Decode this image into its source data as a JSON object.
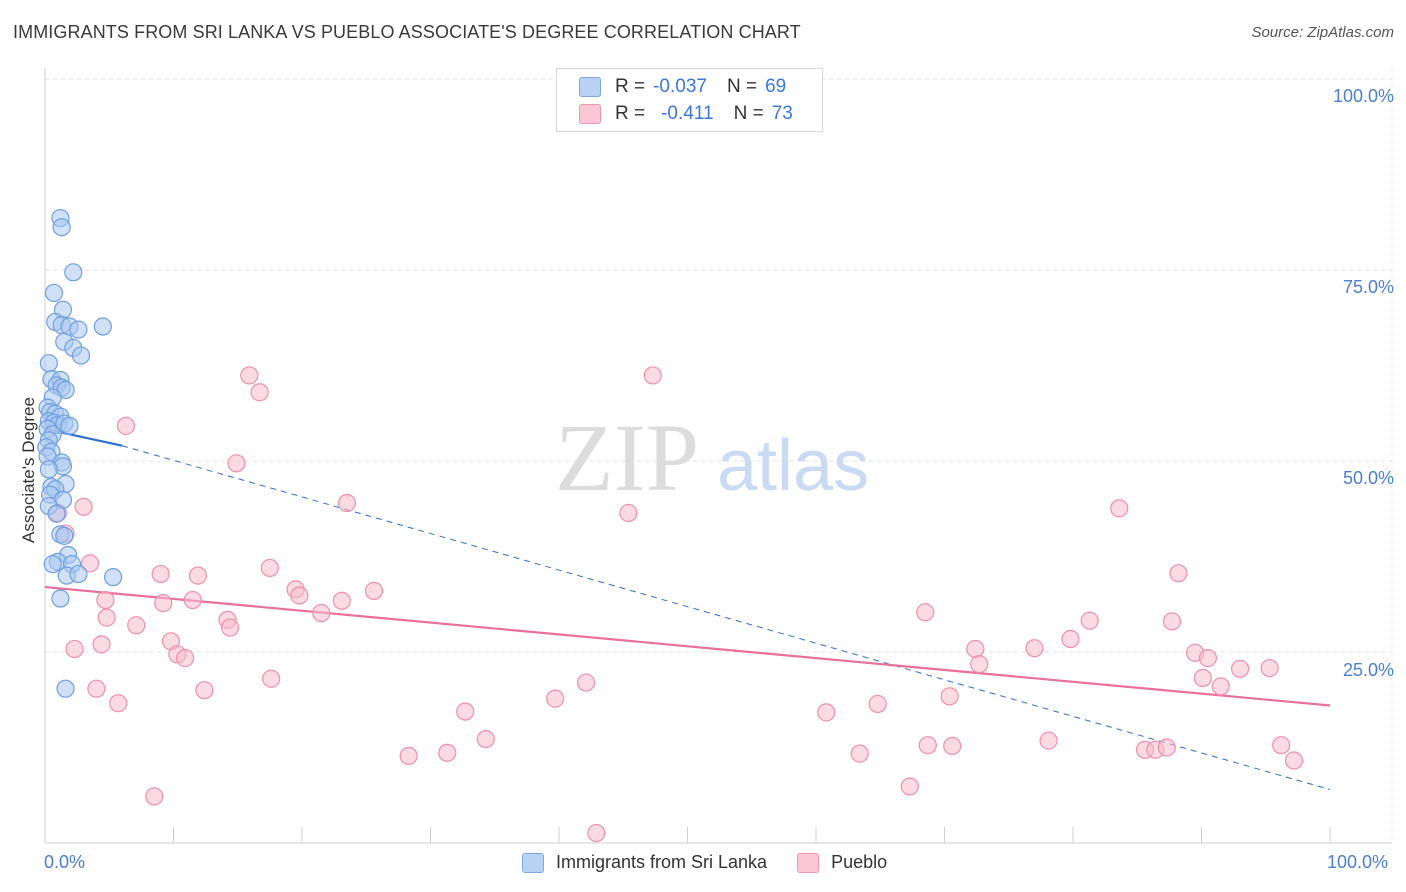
{
  "title": "IMMIGRANTS FROM SRI LANKA VS PUEBLO ASSOCIATE'S DEGREE CORRELATION CHART",
  "source": "Source: ZipAtlas.com",
  "watermark": {
    "zip": "ZIP",
    "atlas": "atlas"
  },
  "colors": {
    "blue_fill": "#a9c8f0",
    "blue_stroke": "#6f9fe0",
    "blue_line": "#2f6fd0",
    "pink_fill": "#f7bccd",
    "pink_stroke": "#ee8fae",
    "pink_line": "#e8709a",
    "axis_text": "#4a7fd0"
  },
  "legend": {
    "rows": [
      {
        "r_label": "R =",
        "r_value": "-0.037",
        "n_label": "N =",
        "n_value": "69"
      },
      {
        "r_label": "R =",
        "r_value": "-0.411",
        "n_label": "N =",
        "n_value": "73"
      }
    ]
  },
  "bottom_legend": [
    "Immigrants from Sri Lanka",
    "Pueblo"
  ],
  "chart_data": {
    "type": "scatter",
    "title": "IMMIGRANTS FROM SRI LANKA VS PUEBLO ASSOCIATE'S DEGREE CORRELATION CHART",
    "xlabel": "",
    "ylabel": "Associate's Degree",
    "xlim": [
      0,
      100
    ],
    "ylim": [
      0,
      100
    ],
    "x_tick_labels": [
      "0.0%",
      "100.0%"
    ],
    "y_tick_labels": [
      "100.0%",
      "75.0%",
      "50.0%",
      "25.0%"
    ],
    "y_ticks": [
      100,
      75,
      50,
      25
    ],
    "grid": true,
    "series": [
      {
        "name": "Immigrants from Sri Lanka",
        "r": -0.037,
        "n": 69,
        "trend_solid": {
          "x": [
            0,
            6
          ],
          "y": [
            54.2,
            52.0
          ]
        },
        "trend_dashed": {
          "x": [
            6,
            100
          ],
          "y": [
            52.0,
            7.0
          ]
        },
        "points": [
          [
            1.2,
            81.8
          ],
          [
            1.3,
            80.6
          ],
          [
            2.2,
            74.7
          ],
          [
            0.7,
            72.0
          ],
          [
            1.4,
            69.8
          ],
          [
            0.8,
            68.2
          ],
          [
            1.3,
            67.8
          ],
          [
            1.9,
            67.6
          ],
          [
            2.6,
            67.2
          ],
          [
            4.5,
            67.6
          ],
          [
            1.5,
            65.6
          ],
          [
            2.2,
            64.8
          ],
          [
            2.8,
            63.8
          ],
          [
            0.3,
            62.8
          ],
          [
            0.5,
            60.7
          ],
          [
            1.2,
            60.6
          ],
          [
            0.9,
            59.9
          ],
          [
            1.3,
            59.6
          ],
          [
            1.6,
            59.3
          ],
          [
            0.6,
            58.3
          ],
          [
            0.2,
            57.0
          ],
          [
            0.4,
            56.4
          ],
          [
            0.8,
            56.2
          ],
          [
            1.2,
            55.8
          ],
          [
            0.3,
            55.2
          ],
          [
            0.7,
            55.0
          ],
          [
            1.0,
            54.7
          ],
          [
            1.5,
            54.9
          ],
          [
            1.9,
            54.6
          ],
          [
            0.2,
            54.2
          ],
          [
            0.6,
            53.5
          ],
          [
            0.3,
            52.7
          ],
          [
            0.1,
            51.8
          ],
          [
            0.5,
            51.2
          ],
          [
            0.2,
            50.6
          ],
          [
            1.3,
            49.8
          ],
          [
            1.4,
            49.3
          ],
          [
            0.3,
            48.9
          ],
          [
            1.6,
            47.0
          ],
          [
            0.5,
            46.6
          ],
          [
            0.8,
            46.3
          ],
          [
            0.4,
            45.6
          ],
          [
            1.4,
            44.9
          ],
          [
            0.3,
            44.1
          ],
          [
            0.9,
            43.1
          ],
          [
            1.2,
            40.4
          ],
          [
            1.5,
            40.2
          ],
          [
            1.8,
            37.7
          ],
          [
            1.0,
            36.8
          ],
          [
            0.6,
            36.5
          ],
          [
            2.1,
            36.5
          ],
          [
            1.7,
            35.0
          ],
          [
            2.6,
            35.2
          ],
          [
            5.3,
            34.8
          ],
          [
            1.2,
            32.0
          ],
          [
            1.6,
            20.2
          ]
        ]
      },
      {
        "name": "Pueblo",
        "r": -0.411,
        "n": 73,
        "trend": {
          "x": [
            0,
            100
          ],
          "y": [
            33.5,
            18.0
          ]
        },
        "points": [
          [
            15.9,
            61.2
          ],
          [
            47.3,
            61.2
          ],
          [
            16.7,
            59.0
          ],
          [
            6.3,
            54.6
          ],
          [
            14.9,
            49.7
          ],
          [
            23.5,
            44.5
          ],
          [
            1.0,
            43.2
          ],
          [
            3.0,
            44.0
          ],
          [
            45.4,
            43.2
          ],
          [
            83.6,
            43.8
          ],
          [
            1.6,
            40.5
          ],
          [
            3.5,
            36.6
          ],
          [
            17.5,
            36.0
          ],
          [
            9.0,
            35.2
          ],
          [
            11.9,
            35.0
          ],
          [
            88.2,
            35.3
          ],
          [
            19.5,
            33.2
          ],
          [
            25.6,
            33.0
          ],
          [
            19.8,
            32.4
          ],
          [
            4.7,
            31.8
          ],
          [
            9.2,
            31.4
          ],
          [
            11.5,
            31.8
          ],
          [
            23.1,
            31.7
          ],
          [
            21.5,
            30.1
          ],
          [
            68.5,
            30.2
          ],
          [
            4.8,
            29.5
          ],
          [
            14.2,
            29.2
          ],
          [
            7.1,
            28.5
          ],
          [
            14.4,
            28.2
          ],
          [
            9.8,
            26.4
          ],
          [
            81.3,
            29.1
          ],
          [
            87.7,
            29.0
          ],
          [
            79.8,
            26.7
          ],
          [
            4.4,
            26.0
          ],
          [
            2.3,
            25.4
          ],
          [
            10.3,
            24.7
          ],
          [
            10.9,
            24.2
          ],
          [
            72.4,
            25.4
          ],
          [
            77.0,
            25.5
          ],
          [
            72.7,
            23.4
          ],
          [
            89.5,
            24.9
          ],
          [
            90.5,
            24.2
          ],
          [
            93.0,
            22.8
          ],
          [
            95.3,
            22.9
          ],
          [
            17.6,
            21.5
          ],
          [
            42.1,
            21.0
          ],
          [
            39.7,
            18.9
          ],
          [
            90.1,
            21.6
          ],
          [
            91.5,
            20.5
          ],
          [
            4.0,
            20.2
          ],
          [
            12.4,
            20.0
          ],
          [
            70.4,
            19.2
          ],
          [
            5.7,
            18.3
          ],
          [
            32.7,
            17.2
          ],
          [
            60.8,
            17.1
          ],
          [
            64.8,
            18.2
          ],
          [
            34.3,
            13.6
          ],
          [
            68.7,
            12.8
          ],
          [
            70.6,
            12.7
          ],
          [
            78.1,
            13.4
          ],
          [
            31.3,
            11.8
          ],
          [
            28.3,
            11.4
          ],
          [
            63.4,
            11.7
          ],
          [
            85.6,
            12.2
          ],
          [
            86.4,
            12.2
          ],
          [
            87.3,
            12.5
          ],
          [
            96.2,
            12.8
          ],
          [
            97.2,
            10.8
          ],
          [
            67.3,
            7.4
          ],
          [
            8.5,
            6.1
          ],
          [
            42.9,
            1.3
          ]
        ]
      }
    ]
  }
}
